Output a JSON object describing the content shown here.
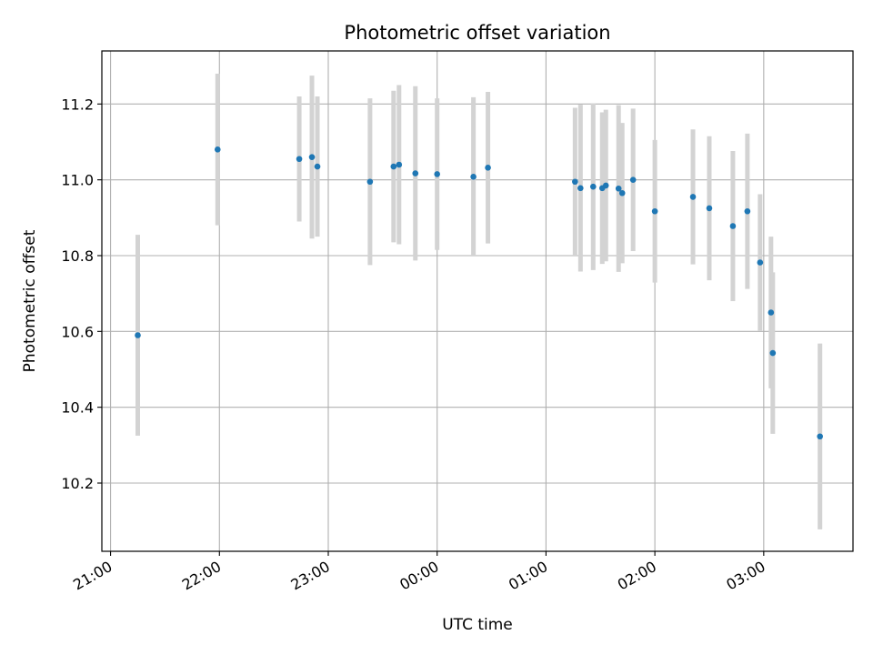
{
  "chart_data": {
    "type": "scatter",
    "title": "Photometric offset variation",
    "xlabel": "UTC time",
    "ylabel": "Photometric offset",
    "x_axis": {
      "unit": "UTC time (hours after 21:00)",
      "range": [
        -0.08,
        6.82
      ],
      "tick_labels": [
        "21:00",
        "22:00",
        "23:00",
        "00:00",
        "01:00",
        "02:00",
        "03:00"
      ],
      "tick_values": [
        0,
        1,
        2,
        3,
        4,
        5,
        6
      ]
    },
    "y_axis": {
      "range": [
        10.02,
        11.34
      ],
      "tick_labels": [
        "10.2",
        "10.4",
        "10.6",
        "10.8",
        "11.0",
        "11.2"
      ],
      "tick_values": [
        10.2,
        10.4,
        10.6,
        10.8,
        11.0,
        11.2
      ]
    },
    "grid": true,
    "colors": {
      "point": "#1f77b4",
      "errorbar": "#d3d3d3",
      "grid": "#b0b0b0"
    },
    "points": [
      {
        "time": "21:15",
        "y": 10.59,
        "err": 0.265
      },
      {
        "time": "21:59",
        "y": 11.08,
        "err": 0.2
      },
      {
        "time": "22:44",
        "y": 11.055,
        "err": 0.165
      },
      {
        "time": "22:51",
        "y": 11.06,
        "err": 0.215
      },
      {
        "time": "22:54",
        "y": 11.035,
        "err": 0.185
      },
      {
        "time": "23:23",
        "y": 10.995,
        "err": 0.22
      },
      {
        "time": "23:36",
        "y": 11.035,
        "err": 0.2
      },
      {
        "time": "23:39",
        "y": 11.04,
        "err": 0.21
      },
      {
        "time": "23:48",
        "y": 11.017,
        "err": 0.23
      },
      {
        "time": "00:00",
        "y": 11.015,
        "err": 0.2
      },
      {
        "time": "00:20",
        "y": 11.008,
        "err": 0.21
      },
      {
        "time": "00:28",
        "y": 11.032,
        "err": 0.2
      },
      {
        "time": "01:16",
        "y": 10.995,
        "err": 0.195
      },
      {
        "time": "01:19",
        "y": 10.978,
        "err": 0.22
      },
      {
        "time": "01:26",
        "y": 10.982,
        "err": 0.22
      },
      {
        "time": "01:31",
        "y": 10.978,
        "err": 0.2
      },
      {
        "time": "01:33",
        "y": 10.985,
        "err": 0.2
      },
      {
        "time": "01:40",
        "y": 10.977,
        "err": 0.22
      },
      {
        "time": "01:42",
        "y": 10.965,
        "err": 0.185
      },
      {
        "time": "01:48",
        "y": 11.0,
        "err": 0.188
      },
      {
        "time": "02:00",
        "y": 10.917,
        "err": 0.188
      },
      {
        "time": "02:21",
        "y": 10.955,
        "err": 0.178
      },
      {
        "time": "02:30",
        "y": 10.925,
        "err": 0.19
      },
      {
        "time": "02:43",
        "y": 10.878,
        "err": 0.198
      },
      {
        "time": "02:51",
        "y": 10.917,
        "err": 0.205
      },
      {
        "time": "02:58",
        "y": 10.782,
        "err": 0.18
      },
      {
        "time": "03:04",
        "y": 10.65,
        "err": 0.2
      },
      {
        "time": "03:05",
        "y": 10.543,
        "err": 0.213
      },
      {
        "time": "03:31",
        "y": 10.323,
        "err": 0.245
      }
    ]
  }
}
